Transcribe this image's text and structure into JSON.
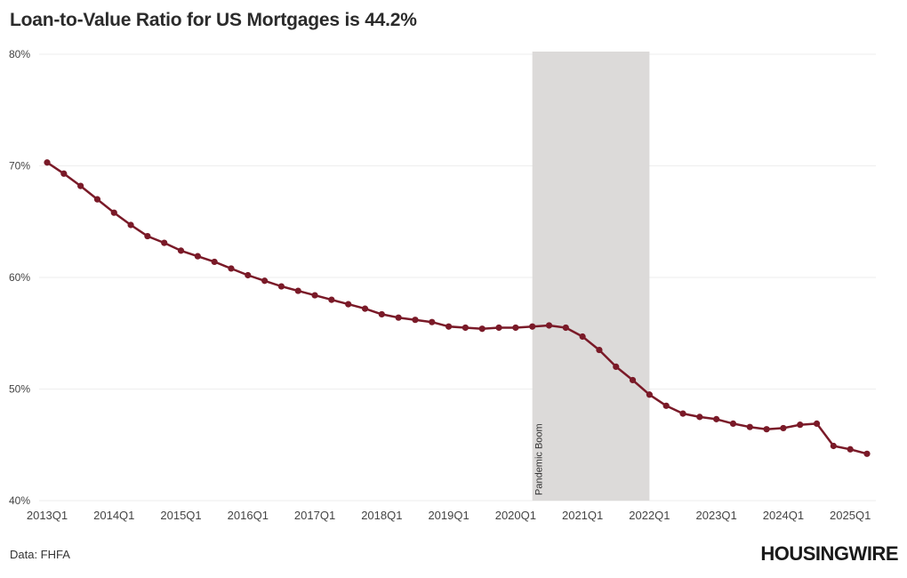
{
  "title": "Loan-to-Value Ratio for US Mortgages is 44.2%",
  "source": "Data: FHFA",
  "brand": "HOUSINGWIRE",
  "colors": {
    "line": "#7a1a28",
    "band": "#dcdad9",
    "grid": "#eeeeee"
  },
  "chart_data": {
    "type": "line",
    "title": "Loan-to-Value Ratio for US Mortgages is 44.2%",
    "xlabel": "",
    "ylabel": "",
    "ylim": [
      40,
      80
    ],
    "yticks": [
      "80%",
      "70%",
      "60%",
      "50%",
      "40%"
    ],
    "ytick_values": [
      80,
      70,
      60,
      50,
      40
    ],
    "xticks": [
      "2013Q1",
      "2014Q1",
      "2015Q1",
      "2016Q1",
      "2017Q1",
      "2018Q1",
      "2019Q1",
      "2020Q1",
      "2021Q1",
      "2022Q1",
      "2023Q1",
      "2024Q1",
      "2025Q1"
    ],
    "grid": true,
    "annotation": {
      "label": "Pandemic Boom",
      "from": "2020Q2",
      "to": "2022Q1"
    },
    "series": [
      {
        "x": [
          "2013Q1",
          "2013Q2",
          "2013Q3",
          "2013Q4",
          "2014Q1",
          "2014Q2",
          "2014Q3",
          "2014Q4",
          "2015Q1",
          "2015Q2",
          "2015Q3",
          "2015Q4",
          "2016Q1",
          "2016Q2",
          "2016Q3",
          "2016Q4",
          "2017Q1",
          "2017Q2",
          "2017Q3",
          "2017Q4",
          "2018Q1",
          "2018Q2",
          "2018Q3",
          "2018Q4",
          "2019Q1",
          "2019Q2",
          "2019Q3",
          "2019Q4",
          "2020Q1",
          "2020Q2",
          "2020Q3",
          "2020Q4",
          "2021Q1",
          "2021Q2",
          "2021Q3",
          "2021Q4",
          "2022Q1",
          "2022Q2",
          "2022Q3",
          "2022Q4",
          "2023Q1",
          "2023Q2",
          "2023Q3",
          "2023Q4",
          "2024Q1",
          "2024Q2",
          "2024Q3",
          "2024Q4",
          "2025Q1",
          "2025Q2"
        ],
        "values": [
          70.3,
          69.3,
          68.2,
          67.0,
          65.8,
          64.7,
          63.7,
          63.1,
          62.4,
          61.9,
          61.4,
          60.8,
          60.2,
          59.7,
          59.2,
          58.8,
          58.4,
          58.0,
          57.6,
          57.2,
          56.7,
          56.4,
          56.2,
          56.0,
          55.6,
          55.5,
          55.4,
          55.5,
          55.5,
          55.6,
          55.7,
          55.5,
          54.7,
          53.5,
          52.0,
          50.8,
          49.5,
          48.5,
          47.8,
          47.5,
          47.3,
          46.9,
          46.6,
          46.4,
          46.5,
          46.8,
          46.9,
          44.9,
          44.6,
          44.2
        ]
      }
    ]
  }
}
